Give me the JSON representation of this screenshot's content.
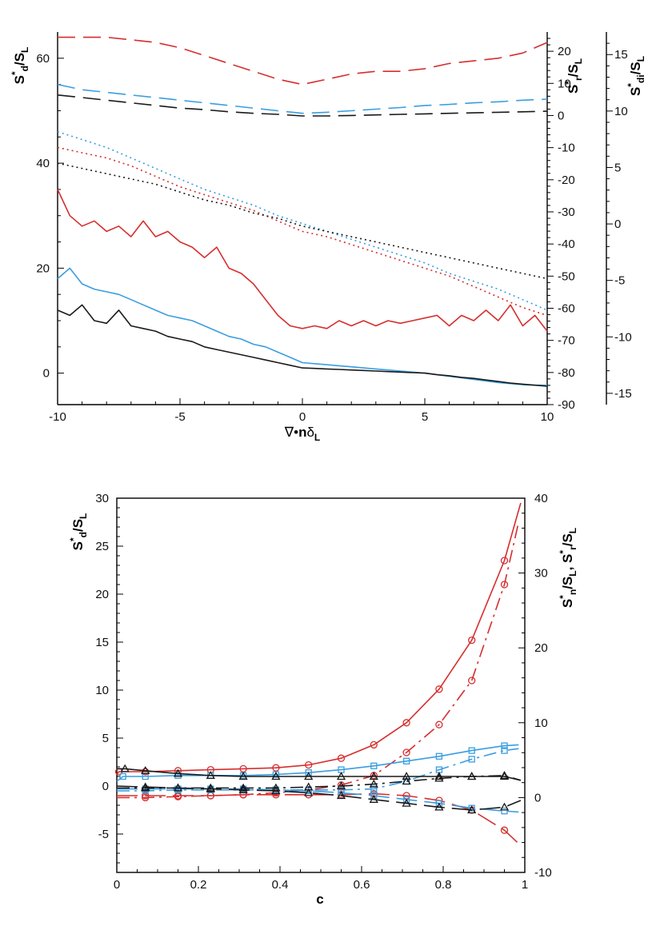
{
  "colors": {
    "red": "#d62e2e",
    "blue": "#3a9ee0",
    "black": "#1a1a1a"
  },
  "chart_data": [
    {
      "type": "line",
      "xlabel": "∇•nδL",
      "xlim": [
        -10,
        10
      ],
      "xticks": [
        -10,
        -5,
        0,
        5,
        10
      ],
      "axes": {
        "left": {
          "label": "Sd*/SL",
          "ylim": [
            -6,
            65
          ],
          "ticks": [
            0,
            20,
            40,
            60
          ]
        },
        "right1": {
          "label": "Sr*/SL",
          "ylim": [
            -90,
            26
          ],
          "ticks": [
            -90,
            -80,
            -70,
            -60,
            -50,
            -40,
            -30,
            -20,
            -10,
            0,
            10,
            20
          ]
        },
        "right2": {
          "label": "Sdi*/SL",
          "ylim": [
            -16,
            17
          ],
          "ticks": [
            -15,
            -10,
            -5,
            0,
            5,
            10,
            15
          ]
        }
      },
      "series": [
        {
          "color": "red",
          "style": "solid",
          "axis": "left",
          "x": [
            -10,
            -9.5,
            -9,
            -8.5,
            -8,
            -7.5,
            -7,
            -6.5,
            -6,
            -5.5,
            -5,
            -4.5,
            -4,
            -3.5,
            -3,
            -2.5,
            -2,
            -1.5,
            -1,
            -0.5,
            0,
            0.5,
            1,
            1.5,
            2,
            2.5,
            3,
            3.5,
            4,
            4.5,
            5,
            5.5,
            6,
            6.5,
            7,
            7.5,
            8,
            8.5,
            9,
            9.5,
            10
          ],
          "y": [
            35,
            30,
            28,
            29,
            27,
            28,
            26,
            29,
            26,
            27,
            25,
            24,
            22,
            24,
            20,
            19,
            17,
            14,
            11,
            9,
            8.5,
            9,
            8.5,
            10,
            9,
            10,
            9,
            10,
            9.5,
            10,
            10.5,
            11,
            9,
            11,
            10,
            12,
            10,
            13,
            9,
            11,
            8
          ]
        },
        {
          "color": "blue",
          "style": "solid",
          "axis": "left",
          "x": [
            -10,
            -9.5,
            -9,
            -8.5,
            -8,
            -7.5,
            -7,
            -6.5,
            -6,
            -5.5,
            -5,
            -4.5,
            -4,
            -3.5,
            -3,
            -2.5,
            -2,
            -1.5,
            -1,
            -0.5,
            0,
            0.5,
            1,
            1.5,
            2,
            2.5,
            3,
            3.5,
            4,
            4.5,
            5,
            5.5,
            6,
            6.5,
            7,
            7.5,
            8,
            8.5,
            9,
            9.5,
            10
          ],
          "y": [
            18,
            20,
            17,
            16,
            15.5,
            15,
            14,
            13,
            12,
            11,
            10.5,
            10,
            9,
            8,
            7,
            6.5,
            5.5,
            5,
            4,
            3,
            2,
            1.8,
            1.6,
            1.4,
            1.2,
            1.0,
            0.8,
            0.6,
            0.4,
            0.2,
            0,
            -0.3,
            -0.6,
            -0.9,
            -1.2,
            -1.5,
            -1.8,
            -2,
            -2.2,
            -2.3,
            -2.3
          ]
        },
        {
          "color": "black",
          "style": "solid",
          "axis": "left",
          "x": [
            -10,
            -9.5,
            -9,
            -8.5,
            -8,
            -7.5,
            -7,
            -6.5,
            -6,
            -5.5,
            -5,
            -4.5,
            -4,
            -3.5,
            -3,
            -2.5,
            -2,
            -1.5,
            -1,
            -0.5,
            0,
            0.5,
            1,
            1.5,
            2,
            2.5,
            3,
            3.5,
            4,
            4.5,
            5,
            5.5,
            6,
            6.5,
            7,
            7.5,
            8,
            8.5,
            9,
            9.5,
            10
          ],
          "y": [
            12,
            11,
            13,
            10,
            9.5,
            12,
            9,
            8.5,
            8,
            7,
            6.5,
            6,
            5,
            4.5,
            4,
            3.5,
            3,
            2.5,
            2,
            1.5,
            1,
            0.9,
            0.8,
            0.7,
            0.6,
            0.5,
            0.4,
            0.3,
            0.2,
            0.1,
            0,
            -0.3,
            -0.5,
            -0.8,
            -1,
            -1.3,
            -1.6,
            -1.9,
            -2.1,
            -2.3,
            -2.5
          ]
        },
        {
          "color": "red",
          "style": "dashed",
          "axis": "left",
          "x": [
            -10,
            -9,
            -8,
            -7,
            -6,
            -5,
            -4,
            -3,
            -2,
            -1,
            0,
            1,
            2,
            3,
            4,
            5,
            6,
            7,
            8,
            9,
            10
          ],
          "y": [
            64,
            64,
            64,
            63.5,
            63,
            62,
            60.5,
            59,
            57.5,
            56,
            55,
            56,
            57,
            57.5,
            57.5,
            58,
            59,
            59.5,
            60,
            61,
            63
          ]
        },
        {
          "color": "blue",
          "style": "dashed",
          "axis": "left",
          "x": [
            -10,
            -9,
            -8,
            -7,
            -6,
            -5,
            -4,
            -3,
            -2,
            -1,
            0,
            1,
            2,
            3,
            4,
            5,
            6,
            7,
            8,
            9,
            10
          ],
          "y": [
            55,
            54,
            53.5,
            53,
            52.5,
            52,
            51.5,
            51,
            50.5,
            50,
            49.5,
            49.7,
            50,
            50.3,
            50.6,
            51,
            51.2,
            51.5,
            51.7,
            52,
            52.2
          ]
        },
        {
          "color": "black",
          "style": "dashed",
          "axis": "left",
          "x": [
            -10,
            -9,
            -8,
            -7,
            -6,
            -5,
            -4,
            -3,
            -2,
            -1,
            0,
            1,
            2,
            3,
            4,
            5,
            6,
            7,
            8,
            9,
            10
          ],
          "y": [
            53,
            52.5,
            52,
            51.5,
            51,
            50.5,
            50.2,
            49.8,
            49.5,
            49.3,
            49,
            49,
            49.1,
            49.2,
            49.3,
            49.4,
            49.5,
            49.6,
            49.7,
            49.8,
            49.9
          ]
        },
        {
          "color": "red",
          "style": "dotted",
          "axis": "left",
          "x": [
            -10,
            -9,
            -8,
            -7,
            -6,
            -5,
            -4,
            -3,
            -2,
            -1,
            0,
            1,
            2,
            3,
            4,
            5,
            6,
            7,
            8,
            9,
            10
          ],
          "y": [
            43,
            42,
            41,
            39.5,
            37.5,
            35.5,
            34,
            32.5,
            31,
            29,
            27,
            26,
            24.5,
            23,
            21.5,
            20,
            18.5,
            16.5,
            14.5,
            12.5,
            11
          ]
        },
        {
          "color": "blue",
          "style": "dotted",
          "axis": "left",
          "x": [
            -10,
            -9,
            -8,
            -7,
            -6,
            -5,
            -4,
            -3,
            -2,
            -1,
            0,
            1,
            2,
            3,
            4,
            5,
            6,
            7,
            8,
            9,
            10
          ],
          "y": [
            46,
            44.5,
            43,
            41,
            39,
            37,
            35,
            33.5,
            32,
            30,
            28.5,
            27,
            25.5,
            24,
            22.5,
            21,
            19,
            17.5,
            16,
            14,
            12
          ]
        },
        {
          "color": "black",
          "style": "dotted",
          "axis": "left",
          "x": [
            -10,
            -9,
            -8,
            -7,
            -6,
            -5,
            -4,
            -3,
            -2,
            -1,
            0,
            1,
            2,
            3,
            4,
            5,
            6,
            7,
            8,
            9,
            10
          ],
          "y": [
            40,
            39,
            38,
            37,
            36,
            34.5,
            33,
            32,
            30.5,
            29.5,
            28,
            27,
            26,
            25,
            24,
            23,
            22,
            21,
            20,
            19,
            18
          ]
        }
      ]
    },
    {
      "type": "line",
      "xlabel": "c",
      "xlim": [
        0,
        1
      ],
      "xticks": [
        0,
        0.2,
        0.4,
        0.6,
        0.8,
        1
      ],
      "axes": {
        "left": {
          "label": "Sd*/SL",
          "ylim": [
            -9,
            30
          ],
          "ticks": [
            -5,
            0,
            5,
            10,
            15,
            20,
            25,
            30
          ]
        },
        "right": {
          "label": "Sn*/SL, Sr*/SL",
          "ylim": [
            -10,
            40
          ],
          "ticks": [
            -10,
            0,
            10,
            20,
            30,
            40
          ]
        }
      },
      "series": [
        {
          "color": "red",
          "style": "solid",
          "axis": "left",
          "marker": "circle",
          "x": [
            0,
            0.005,
            0.07,
            0.15,
            0.23,
            0.31,
            0.39,
            0.47,
            0.55,
            0.63,
            0.71,
            0.79,
            0.87,
            0.95,
            0.99
          ],
          "y": [
            1.2,
            1.5,
            1.5,
            1.6,
            1.7,
            1.8,
            1.9,
            2.2,
            2.9,
            4.3,
            6.6,
            10.1,
            15.2,
            23.5,
            29.5
          ]
        },
        {
          "color": "red",
          "style": "dashdot",
          "axis": "left",
          "marker": "circle",
          "x": [
            0,
            0.07,
            0.15,
            0.23,
            0.31,
            0.39,
            0.47,
            0.55,
            0.63,
            0.71,
            0.79,
            0.87,
            0.95,
            0.985
          ],
          "y": [
            -1.2,
            -1.2,
            -1.1,
            -1.0,
            -0.9,
            -0.7,
            -0.4,
            0.1,
            1.1,
            3.5,
            6.4,
            11.0,
            21.0,
            27.5
          ]
        },
        {
          "color": "red",
          "style": "longdash",
          "axis": "left",
          "marker": "circle",
          "x": [
            0,
            0.07,
            0.15,
            0.23,
            0.31,
            0.39,
            0.47,
            0.55,
            0.63,
            0.71,
            0.79,
            0.87,
            0.95,
            0.985
          ],
          "y": [
            -1.0,
            -1.0,
            -1.0,
            -1.0,
            -0.9,
            -0.9,
            -0.9,
            -0.9,
            -0.8,
            -1.0,
            -1.5,
            -2.5,
            -4.6,
            -6.0
          ]
        },
        {
          "color": "blue",
          "style": "solid",
          "axis": "left",
          "marker": "square",
          "x": [
            0,
            0.015,
            0.07,
            0.15,
            0.23,
            0.31,
            0.39,
            0.47,
            0.55,
            0.63,
            0.71,
            0.79,
            0.87,
            0.95,
            0.985
          ],
          "y": [
            0.5,
            1.0,
            1.0,
            1.1,
            1.1,
            1.1,
            1.2,
            1.4,
            1.7,
            2.1,
            2.6,
            3.1,
            3.7,
            4.2,
            4.3
          ]
        },
        {
          "color": "blue",
          "style": "dashdot",
          "axis": "left",
          "marker": "square",
          "x": [
            0,
            0.07,
            0.15,
            0.23,
            0.31,
            0.39,
            0.47,
            0.55,
            0.63,
            0.71,
            0.79,
            0.87,
            0.95,
            0.985
          ],
          "y": [
            -0.5,
            -0.5,
            -0.4,
            -0.4,
            -0.4,
            -0.4,
            -0.4,
            -0.4,
            -0.3,
            0.5,
            1.7,
            2.8,
            3.7,
            3.9
          ]
        },
        {
          "color": "blue",
          "style": "longdash",
          "axis": "left",
          "marker": "square",
          "x": [
            0,
            0.07,
            0.15,
            0.23,
            0.31,
            0.39,
            0.47,
            0.55,
            0.63,
            0.71,
            0.79,
            0.87,
            0.95,
            0.985
          ],
          "y": [
            -0.3,
            -0.3,
            -0.3,
            -0.3,
            -0.3,
            -0.4,
            -0.5,
            -0.7,
            -1.0,
            -1.4,
            -1.8,
            -2.3,
            -2.6,
            -2.7
          ]
        },
        {
          "color": "black",
          "style": "solid",
          "axis": "left",
          "marker": "triangle",
          "x": [
            0,
            0.02,
            0.07,
            0.15,
            0.23,
            0.31,
            0.39,
            0.47,
            0.55,
            0.63,
            0.71,
            0.79,
            0.87,
            0.95,
            0.99
          ],
          "y": [
            1.8,
            1.8,
            1.6,
            1.3,
            1.1,
            1.0,
            1.0,
            1.0,
            1.0,
            1.0,
            1.0,
            1.0,
            1.0,
            1.0,
            0.6
          ]
        },
        {
          "color": "black",
          "style": "dashdot",
          "axis": "left",
          "marker": "triangle",
          "x": [
            0,
            0.07,
            0.15,
            0.23,
            0.31,
            0.39,
            0.47,
            0.55,
            0.63,
            0.71,
            0.79,
            0.87,
            0.95,
            0.99
          ],
          "y": [
            -0.2,
            -0.2,
            -0.2,
            -0.2,
            -0.2,
            -0.2,
            -0.1,
            0.0,
            0.2,
            0.5,
            0.8,
            1.0,
            1.1,
            0.6
          ]
        },
        {
          "color": "black",
          "style": "longdash",
          "axis": "left",
          "marker": "triangle",
          "x": [
            0,
            0.07,
            0.15,
            0.23,
            0.31,
            0.39,
            0.47,
            0.55,
            0.63,
            0.71,
            0.79,
            0.87,
            0.95,
            0.99
          ],
          "y": [
            0.0,
            -0.1,
            -0.2,
            -0.3,
            -0.4,
            -0.5,
            -0.7,
            -1.0,
            -1.4,
            -1.8,
            -2.2,
            -2.5,
            -2.2,
            -1.5
          ]
        }
      ]
    }
  ]
}
